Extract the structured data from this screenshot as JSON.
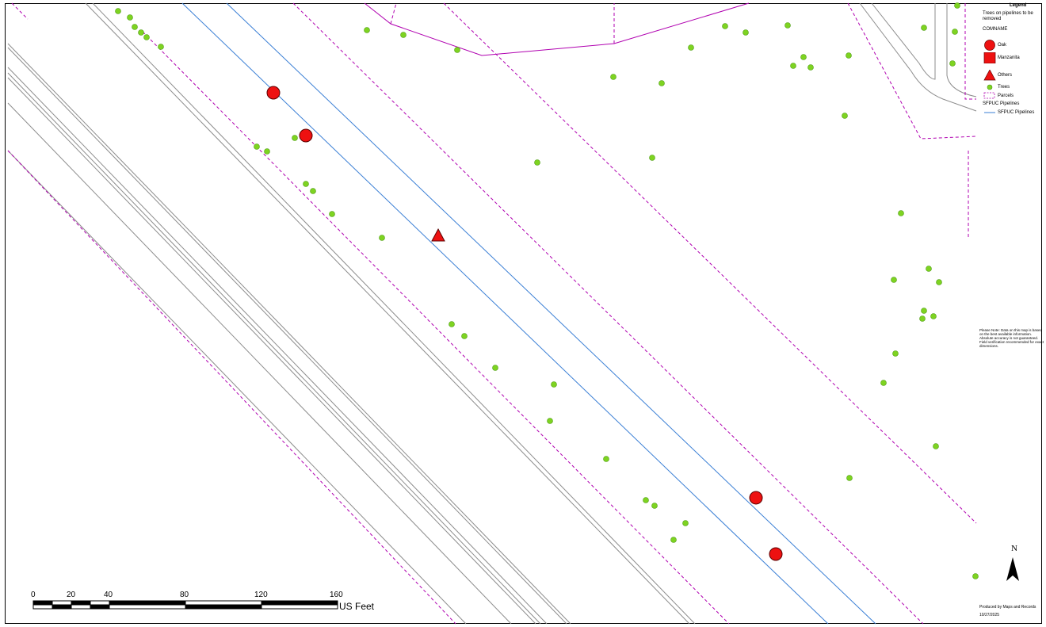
{
  "legend": {
    "title": "Legend",
    "heading": "Trees on pipelines to be removed",
    "field": "COMNAME",
    "items": [
      {
        "label": "Oak",
        "symbol": "circle",
        "color": "#ee1111"
      },
      {
        "label": "Manzanita",
        "symbol": "square",
        "color": "#ee1111"
      },
      {
        "label": "Others",
        "symbol": "triangle",
        "color": "#ee1111"
      },
      {
        "label": "Trees",
        "symbol": "dot",
        "color": "#7ed321"
      },
      {
        "label": "Parcels",
        "symbol": "dashed-box",
        "color": "#b000b0"
      },
      {
        "label": "SFPUC Pipelines",
        "symbol": "none",
        "color": ""
      },
      {
        "label": "SFPUC Pipelines",
        "symbol": "line",
        "color": "#3a7fd5"
      }
    ]
  },
  "note": "Please Note: Data on this map is based on the best available information. Absolute accuracy is not guaranteed. Field verification recommended for exact dimensions.",
  "produced_by": "Produced by Maps and Records",
  "date": "10/27/2025",
  "north_label": "N",
  "scale_bar": {
    "labels": [
      "0",
      "20",
      "40",
      "80",
      "120",
      "160"
    ],
    "unit": "US Feet"
  },
  "colors": {
    "tree": "#7ed321",
    "tree_stroke": "#4a9a10",
    "removal": "#ee1111",
    "parcel": "#b000b0",
    "pipeline": "#3a7fd5",
    "road": "#8c8c8c"
  }
}
